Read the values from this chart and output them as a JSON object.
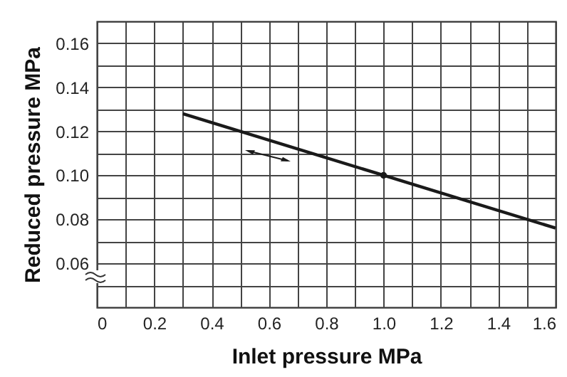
{
  "chart_data": {
    "type": "line",
    "xlabel": "Inlet pressure MPa",
    "ylabel": "Reduced pressure MPa",
    "xlim": [
      0,
      1.6
    ],
    "ylim": [
      0.04,
      0.17
    ],
    "xticks": [
      0,
      {
        "value": 0.1,
        "label": null
      },
      0.2,
      {
        "value": 0.3,
        "label": null
      },
      0.4,
      {
        "value": 0.5,
        "label": null
      },
      0.6,
      {
        "value": 0.7,
        "label": null
      },
      0.8,
      {
        "value": 0.9,
        "label": null
      },
      {
        "value": 1,
        "label": "1.0"
      },
      {
        "value": 1.1,
        "label": null
      },
      1.2,
      {
        "value": 1.3,
        "label": null
      },
      1.4,
      {
        "value": 1.5,
        "label": null
      },
      1.6
    ],
    "yticks": [
      {
        "value": 0.05,
        "label": null
      },
      0.06,
      {
        "value": 0.07,
        "label": null
      },
      0.08,
      {
        "value": 0.09,
        "label": null
      },
      {
        "value": 0.1,
        "label": "0.10"
      },
      {
        "value": 0.11,
        "label": null
      },
      0.12,
      {
        "value": 0.13,
        "label": null
      },
      0.14,
      {
        "value": 0.15,
        "label": null
      },
      0.16
    ],
    "grid": true,
    "series": [
      {
        "color": "#1a1a1a",
        "x": [
          0.3,
          1.0,
          1.6
        ],
        "values": [
          0.128,
          0.1,
          0.076
        ],
        "marker": "none",
        "line_style": "solid"
      },
      {
        "type": "scatter",
        "color": "#1a1a1a",
        "x": [
          1.0
        ],
        "values": [
          0.1
        ],
        "marker": "circle"
      }
    ]
  }
}
